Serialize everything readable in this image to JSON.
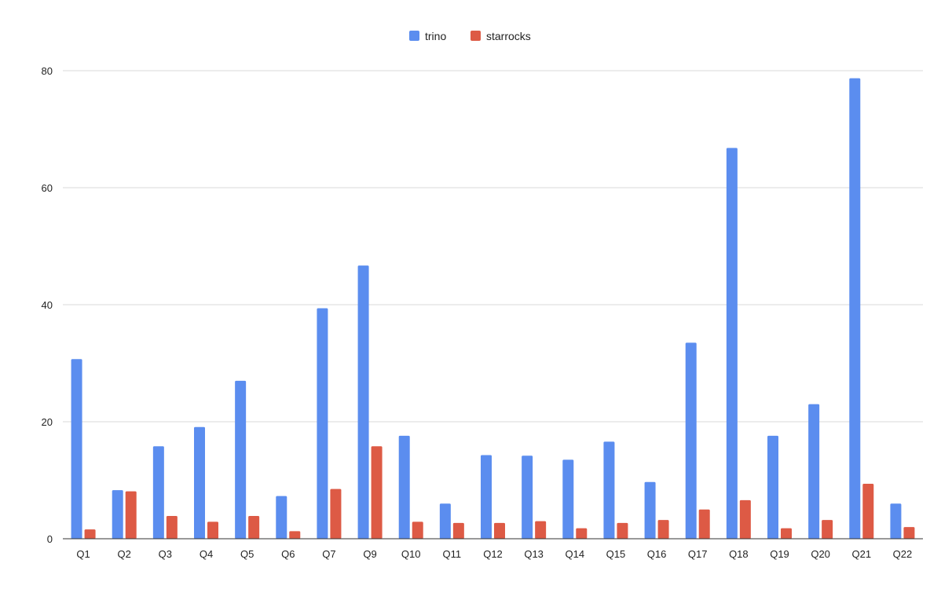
{
  "chart_data": {
    "type": "bar",
    "title": "",
    "xlabel": "",
    "ylabel": "",
    "categories": [
      "Q1",
      "Q2",
      "Q3",
      "Q4",
      "Q5",
      "Q6",
      "Q7",
      "Q9",
      "Q10",
      "Q11",
      "Q12",
      "Q13",
      "Q14",
      "Q15",
      "Q16",
      "Q17",
      "Q18",
      "Q19",
      "Q20",
      "Q21",
      "Q22"
    ],
    "series": [
      {
        "name": "trino",
        "color": "#5b8def",
        "values": [
          30.7,
          8.3,
          15.8,
          19.1,
          27.0,
          7.3,
          39.4,
          46.7,
          17.6,
          6.0,
          14.3,
          14.2,
          13.5,
          16.6,
          9.7,
          33.5,
          66.8,
          17.6,
          23.0,
          78.7,
          6.0
        ]
      },
      {
        "name": "starrocks",
        "color": "#dd5a45",
        "values": [
          1.6,
          8.1,
          3.9,
          2.9,
          3.9,
          1.3,
          8.5,
          15.8,
          2.9,
          2.7,
          2.7,
          3.0,
          1.8,
          2.7,
          3.2,
          5.0,
          6.6,
          1.8,
          3.2,
          9.4,
          2.0
        ]
      }
    ],
    "ylim": [
      0,
      80
    ],
    "yticks": [
      0,
      20,
      40,
      60,
      80
    ],
    "grid": true,
    "legend": "top-center"
  }
}
